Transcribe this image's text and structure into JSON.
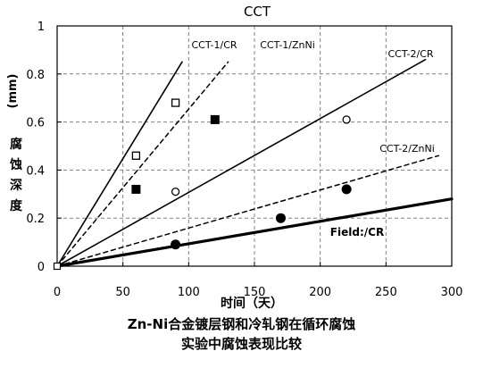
{
  "chart_data": {
    "type": "line",
    "title": "CCT",
    "xlabel": "时间（天）",
    "ylabel_unit": "(mm)",
    "ylabel_chars": [
      "腐",
      "蚀",
      "深",
      "度"
    ],
    "xlim": [
      0,
      300
    ],
    "ylim": [
      0,
      1
    ],
    "x_ticks": [
      0,
      50,
      100,
      150,
      200,
      250,
      300
    ],
    "y_ticks": [
      0,
      0.2,
      0.4,
      0.6,
      0.8,
      1
    ],
    "y_tick_labels": [
      "0",
      "0.2",
      "0.4",
      "0.6",
      "0.8",
      "1"
    ],
    "grid": "dashed",
    "series": [
      {
        "name": "CCT-1/CR",
        "line_style": "solid",
        "marker": "open-square",
        "line": [
          [
            0,
            0
          ],
          [
            95,
            0.85
          ]
        ],
        "points": [
          [
            60,
            0.46
          ],
          [
            90,
            0.68
          ]
        ]
      },
      {
        "name": "CCT-1/ZnNi",
        "line_style": "dashed",
        "marker": "filled-square",
        "line": [
          [
            0,
            0
          ],
          [
            130,
            0.85
          ]
        ],
        "points": [
          [
            60,
            0.32
          ],
          [
            120,
            0.61
          ]
        ]
      },
      {
        "name": "CCT-2/CR",
        "line_style": "solid",
        "marker": "open-circle",
        "line": [
          [
            0,
            0
          ],
          [
            280,
            0.86
          ]
        ],
        "points": [
          [
            90,
            0.31
          ],
          [
            220,
            0.61
          ]
        ]
      },
      {
        "name": "CCT-2/ZnNi",
        "line_style": "dashed",
        "marker": "filled-circle",
        "line": [
          [
            0,
            0
          ],
          [
            290,
            0.46
          ]
        ],
        "points": [
          [
            90,
            0.09
          ],
          [
            170,
            0.2
          ],
          [
            220,
            0.32
          ]
        ]
      },
      {
        "name": "Field:/CR",
        "line_style": "thick-solid",
        "marker": "none",
        "line": [
          [
            0,
            0
          ],
          [
            300,
            0.28
          ]
        ],
        "points": []
      }
    ]
  },
  "caption": {
    "line1": "Zn-Ni合金镀层钢和冷轧钢在循环腐蚀",
    "line2": "实验中腐蚀表现比较"
  },
  "colors": {
    "ink": "#000000",
    "grid": "#808080",
    "background": "#ffffff"
  }
}
